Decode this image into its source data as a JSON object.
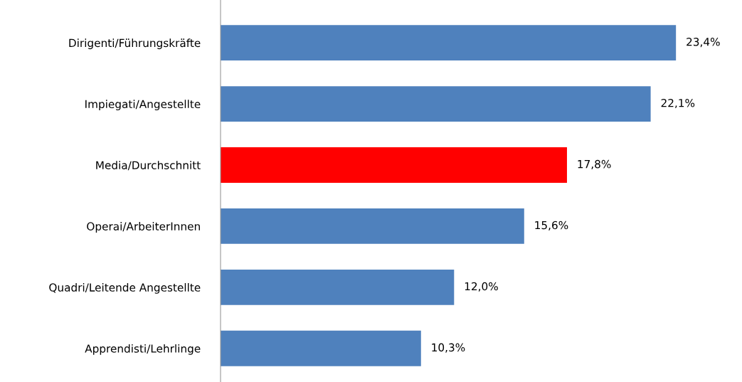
{
  "chart_data": {
    "type": "bar",
    "orientation": "horizontal",
    "categories": [
      "Dirigenti/Führungskräfte",
      "Impiegati/Angestellte",
      "Media/Durchschnitt",
      "Operai/ArbeiterInnen",
      "Quadri/Leitende Angestellte",
      "Apprendisti/Lehrlinge"
    ],
    "values": [
      23.4,
      22.1,
      17.8,
      15.6,
      12.0,
      10.3
    ],
    "colors": [
      "#4f81bd",
      "#4f81bd",
      "#ff0000",
      "#4f81bd",
      "#4f81bd",
      "#4f81bd"
    ],
    "value_labels": [
      "23,4%",
      "22,1%",
      "17,8%",
      "15,6%",
      "12,0%",
      "10,3%"
    ],
    "tick_labels": "y",
    "grid": false,
    "legend": false
  }
}
